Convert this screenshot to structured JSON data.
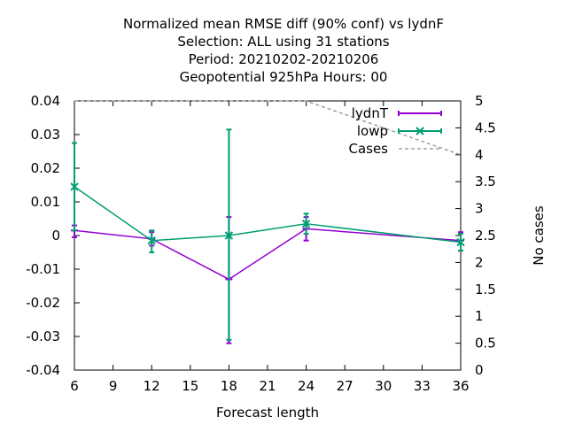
{
  "chart_data": {
    "type": "line",
    "title_lines": [
      "Normalized mean RMSE diff (90% conf) vs lydnF",
      "Selection: ALL using    31 stations",
      "Period: 20210202-20210206",
      "Geopotential 925hPa   Hours:  00"
    ],
    "xlabel": "Forecast length",
    "y2label": "No cases",
    "xlim": [
      6,
      36
    ],
    "ylim": [
      -0.04,
      0.04
    ],
    "y2lim": [
      0,
      5
    ],
    "xticks": [
      6,
      9,
      12,
      15,
      18,
      21,
      24,
      27,
      30,
      33,
      36
    ],
    "yticks": [
      -0.04,
      -0.03,
      -0.02,
      -0.01,
      0,
      0.01,
      0.02,
      0.03,
      0.04
    ],
    "ytick_labels": [
      "-0.04",
      "-0.03",
      "-0.02",
      "-0.01",
      "0",
      "0.01",
      "0.02",
      "0.03",
      "0.04"
    ],
    "y2ticks": [
      0,
      0.5,
      1,
      1.5,
      2,
      2.5,
      3,
      3.5,
      4,
      4.5,
      5
    ],
    "y2tick_labels": [
      "0",
      "0.5",
      "1",
      "1.5",
      "2",
      "2.5",
      "3",
      "3.5",
      "4",
      "4.5",
      "5"
    ],
    "grid": false,
    "legend_position": "top-right",
    "series": [
      {
        "name": "lydnT",
        "color": "#9400d3",
        "x": [
          6,
          12,
          18,
          24,
          36
        ],
        "y": [
          0.0015,
          -0.001,
          -0.013,
          0.002,
          -0.0015
        ],
        "err_low": [
          -0.0005,
          -0.003,
          -0.032,
          -0.0015,
          -0.0045
        ],
        "err_high": [
          0.003,
          0.001,
          0.0055,
          0.0055,
          0.001
        ]
      },
      {
        "name": "lowp",
        "color": "#009e73",
        "x": [
          6,
          12,
          18,
          24,
          36
        ],
        "y": [
          0.0145,
          -0.0015,
          0.0,
          0.0035,
          -0.002
        ],
        "err_low": [
          0.0015,
          -0.005,
          -0.031,
          0.0005,
          -0.0045
        ],
        "err_high": [
          0.0275,
          0.0015,
          0.0315,
          0.0065,
          0.0005
        ]
      },
      {
        "name": "Cases",
        "color": "#a0a0a0",
        "axis": "y2",
        "x": [
          6,
          24,
          36
        ],
        "y": [
          5,
          5,
          4
        ]
      }
    ]
  }
}
